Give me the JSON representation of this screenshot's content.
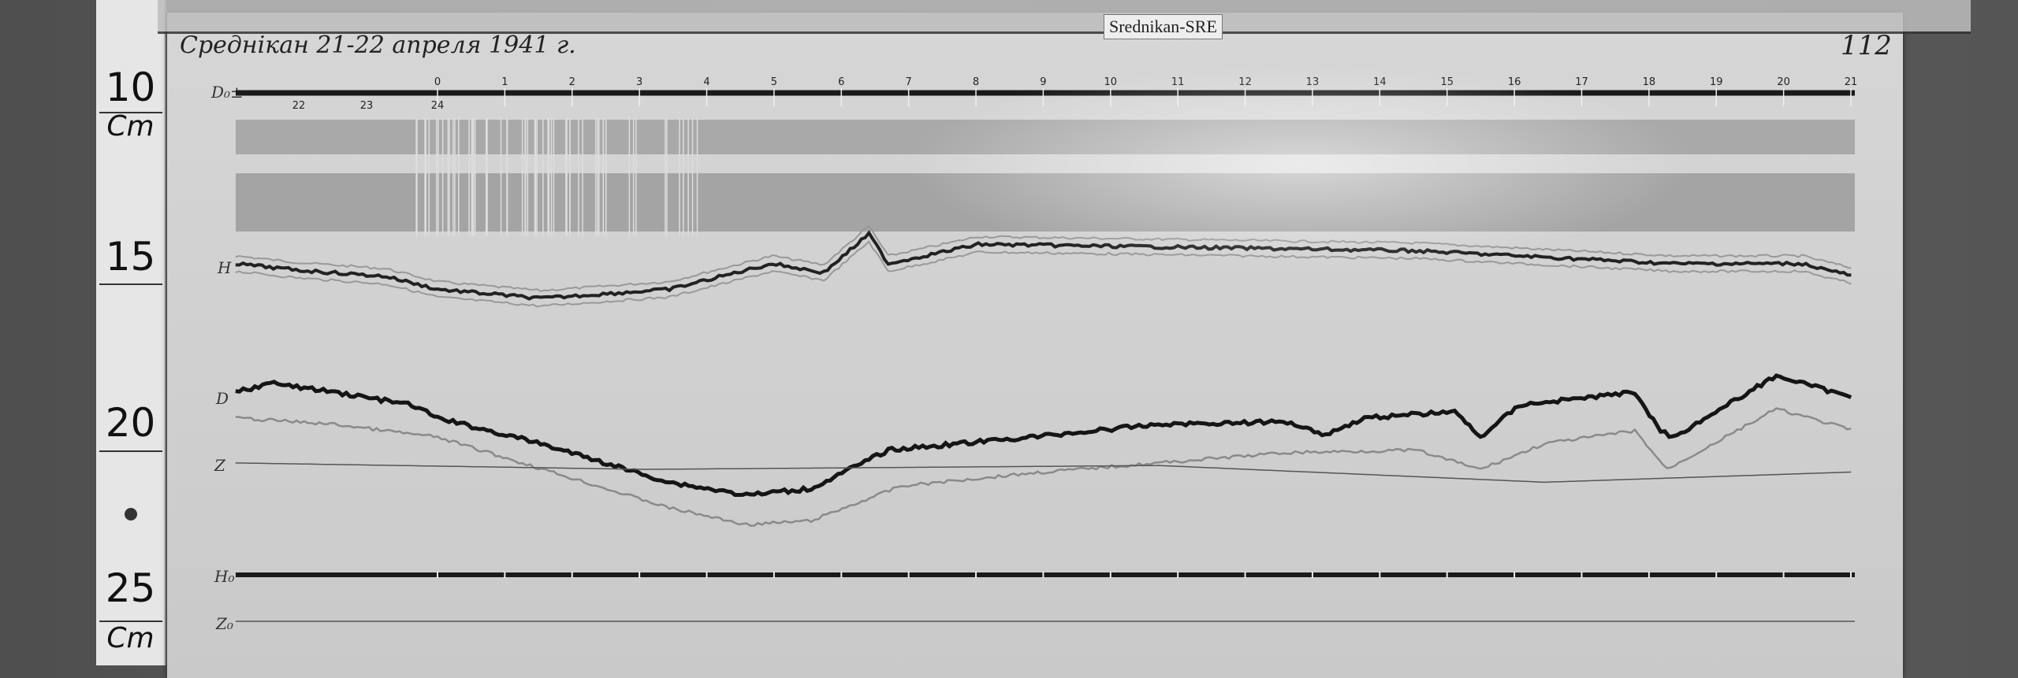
{
  "ruler": {
    "labels": [
      "10",
      "Cm",
      "15",
      "20",
      "25",
      "Cm"
    ]
  },
  "record": {
    "title": "Среднікан 21-22 апреля 1941 г.",
    "station_tag": "Srednikan-SRE",
    "page_number": "112",
    "trace_labels": {
      "d0": "D₀±",
      "h": "H",
      "d": "D",
      "z": "Z",
      "h0": "H₀",
      "z0": "Z₀"
    },
    "hour_marks_before": [
      "22",
      "23",
      "24"
    ],
    "hour_marks": [
      "0",
      "1",
      "2",
      "3",
      "4",
      "5",
      "6",
      "7",
      "8",
      "9",
      "10",
      "11",
      "12",
      "13",
      "14",
      "15",
      "16",
      "17",
      "18",
      "19",
      "20",
      "21"
    ]
  }
}
